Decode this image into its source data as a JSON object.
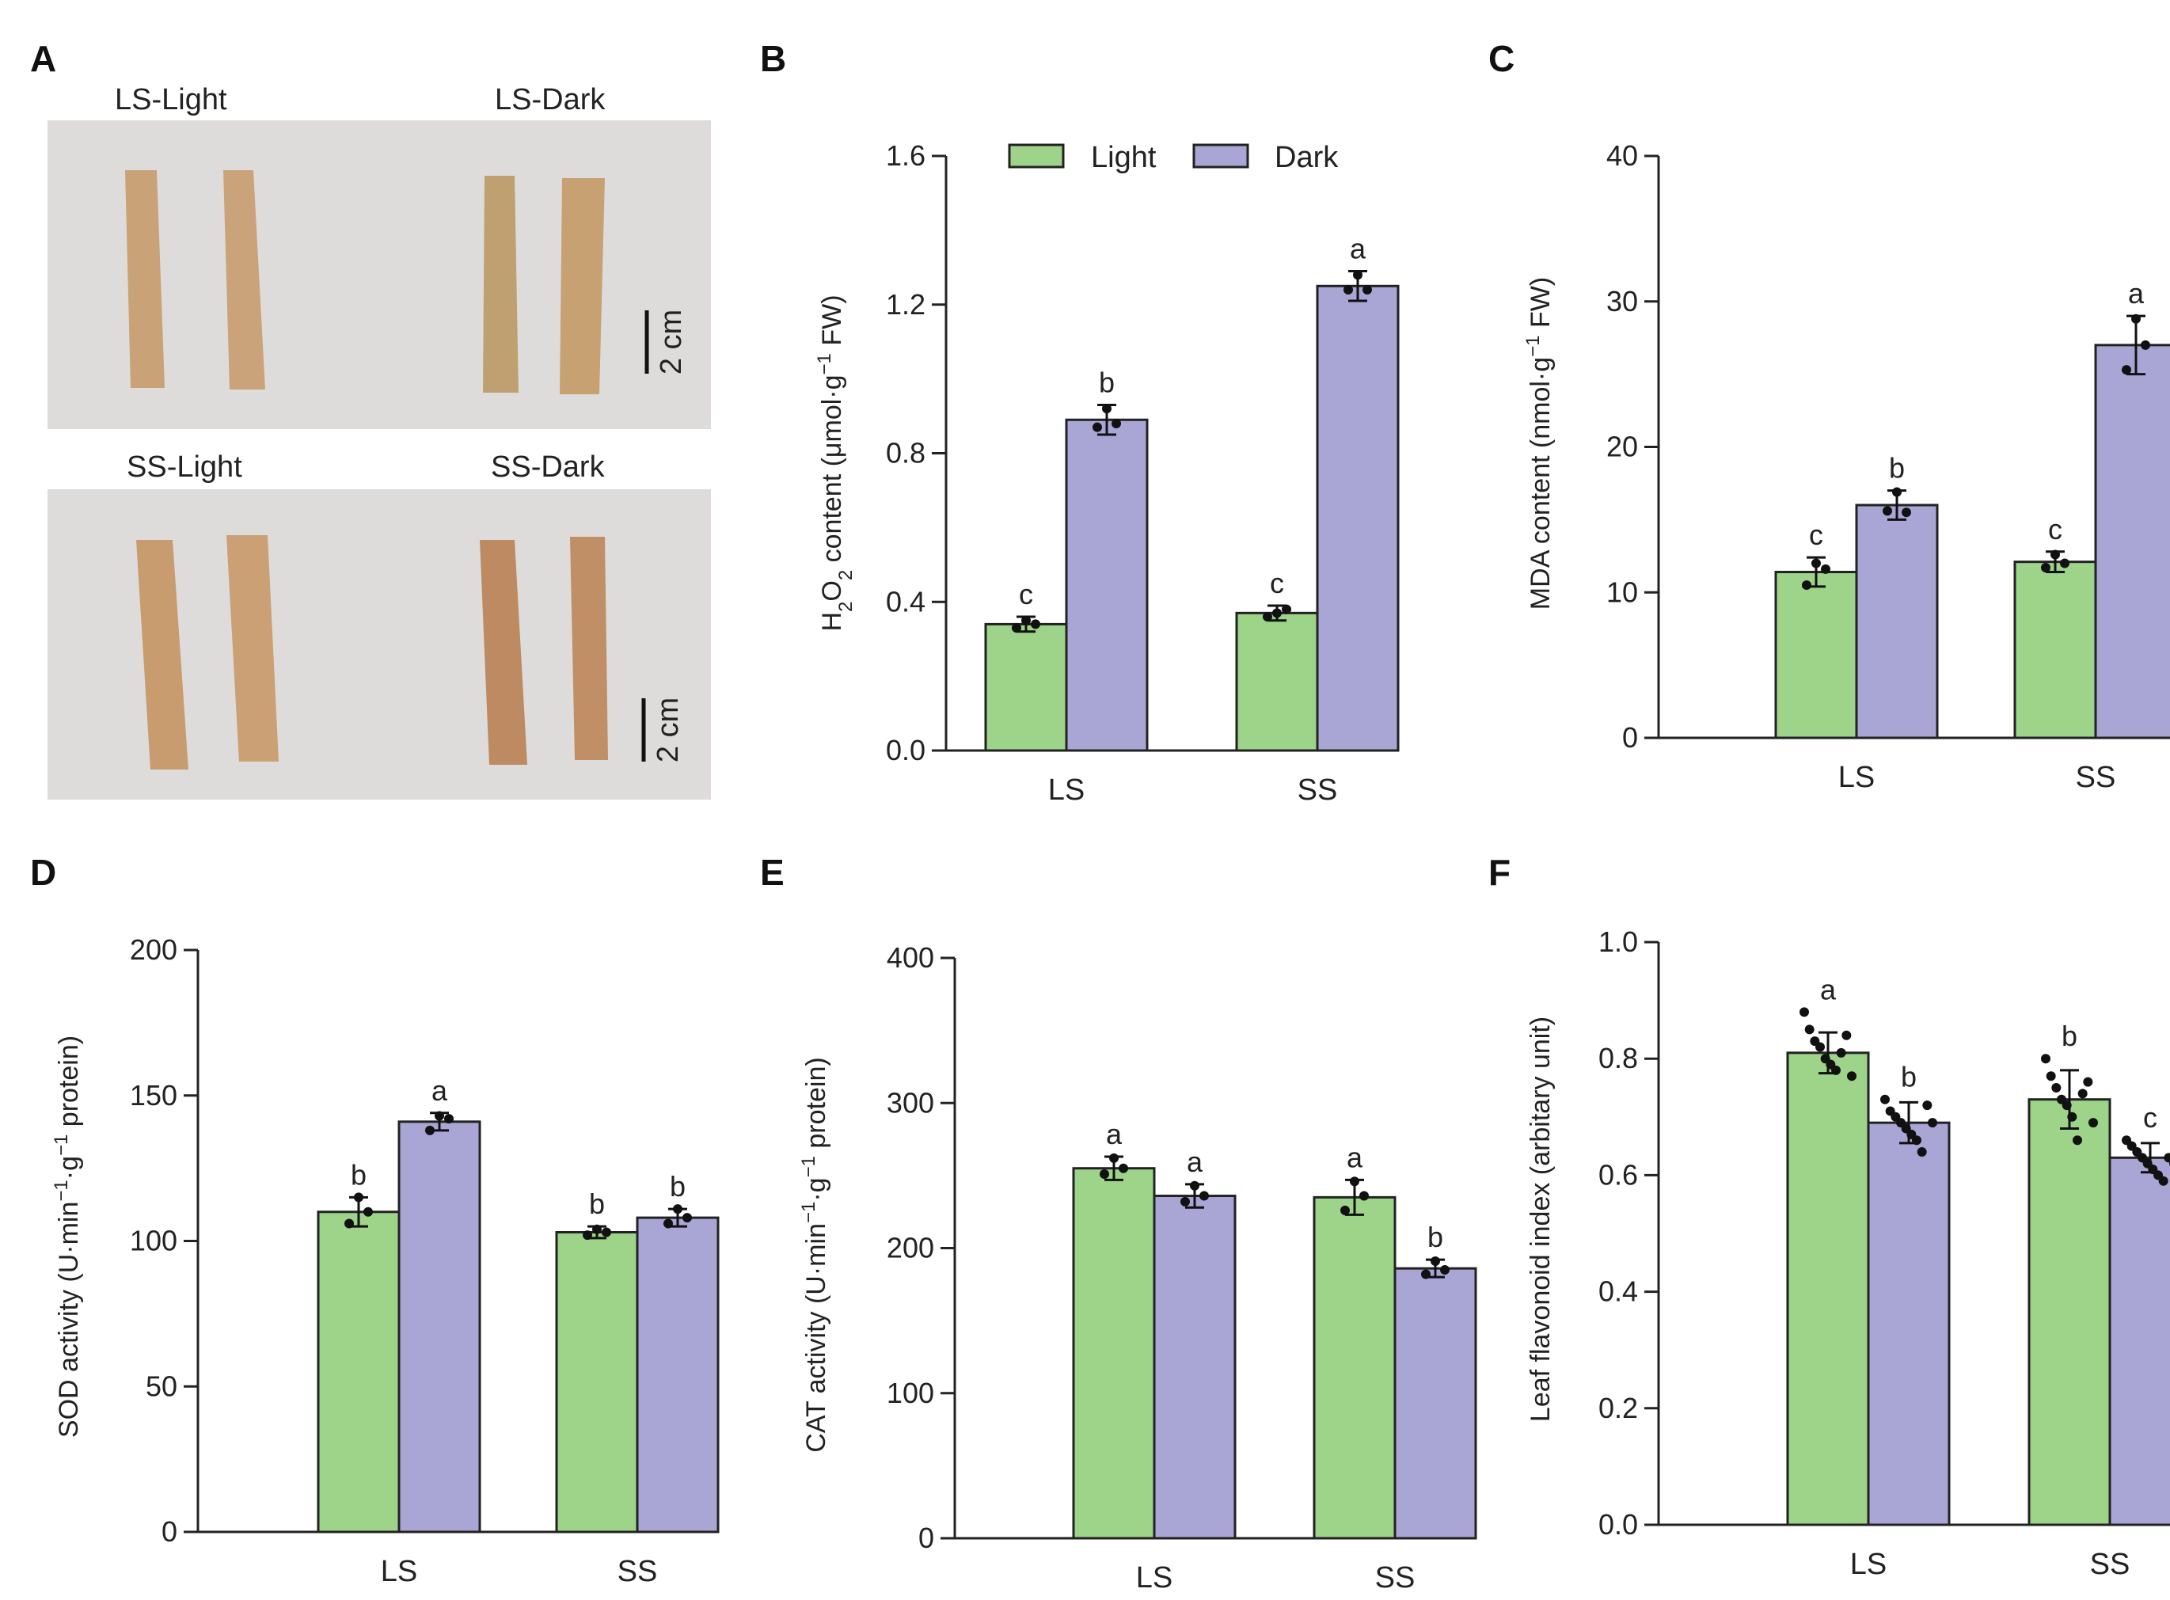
{
  "figure": {
    "panel_A": {
      "letter": "A",
      "top_labels": [
        "LS-Light",
        "LS-Dark"
      ],
      "bottom_labels": [
        "SS-Light",
        "SS-Dark"
      ],
      "scale_bar_label": "2 cm"
    },
    "legend": {
      "light_label": "Light",
      "dark_label": "Dark"
    },
    "colors": {
      "light": "#9dd48a",
      "dark": "#a9a6d6",
      "photo_bg": "#dedcda",
      "leaf": "#c9a278"
    }
  },
  "chart_data": [
    {
      "id": "B",
      "letter": "B",
      "type": "bar",
      "categories": [
        "LS",
        "SS"
      ],
      "series": [
        {
          "name": "Light",
          "values": [
            0.34,
            0.37
          ],
          "errors": [
            0.02,
            0.02
          ],
          "letters": [
            "c",
            "c"
          ],
          "points": [
            [
              0.33,
              0.35,
              0.34
            ],
            [
              0.36,
              0.37,
              0.38
            ]
          ]
        },
        {
          "name": "Dark",
          "values": [
            0.89,
            1.25
          ],
          "errors": [
            0.04,
            0.04
          ],
          "letters": [
            "b",
            "a"
          ],
          "points": [
            [
              0.87,
              0.92,
              0.88
            ],
            [
              1.24,
              1.28,
              1.24
            ]
          ]
        }
      ],
      "ylabel_main": "H",
      "ylabel_sub1": "2",
      "ylabel_mid": "O",
      "ylabel_sub2": "2",
      "ylabel_rest": " content (μmol·g",
      "ylabel_sup": "−1",
      "ylabel_end": " FW)",
      "ylim": [
        0,
        1.6
      ],
      "yticks": [
        0.0,
        0.4,
        0.8,
        1.2,
        1.6
      ],
      "ytick_labels": [
        "0.0",
        "0.4",
        "0.8",
        "1.2",
        "1.6"
      ]
    },
    {
      "id": "C",
      "letter": "C",
      "type": "bar",
      "categories": [
        "LS",
        "SS"
      ],
      "series": [
        {
          "name": "Light",
          "values": [
            11.4,
            12.1
          ],
          "errors": [
            1.0,
            0.7
          ],
          "letters": [
            "c",
            "c"
          ],
          "points": [
            [
              10.5,
              12.0,
              11.6
            ],
            [
              11.7,
              12.6,
              12.0
            ]
          ]
        },
        {
          "name": "Dark",
          "values": [
            16.0,
            27.0
          ],
          "errors": [
            1.0,
            2.0
          ],
          "letters": [
            "b",
            "a"
          ],
          "points": [
            [
              15.6,
              16.9,
              15.5
            ],
            [
              25.3,
              28.8,
              27.0
            ]
          ]
        }
      ],
      "ylabel_main": "MDA content (nmol·g",
      "ylabel_sup": "−1",
      "ylabel_end": " FW)",
      "ylim": [
        0,
        40
      ],
      "yticks": [
        0,
        10,
        20,
        30,
        40
      ],
      "ytick_labels": [
        "0",
        "10",
        "20",
        "30",
        "40"
      ]
    },
    {
      "id": "D",
      "letter": "D",
      "type": "bar",
      "categories": [
        "LS",
        "SS"
      ],
      "series": [
        {
          "name": "Light",
          "values": [
            110,
            103
          ],
          "errors": [
            5,
            2
          ],
          "letters": [
            "b",
            "b"
          ],
          "points": [
            [
              106,
              115,
              110
            ],
            [
              102,
              104,
              103
            ]
          ]
        },
        {
          "name": "Dark",
          "values": [
            141,
            108
          ],
          "errors": [
            3,
            3
          ],
          "letters": [
            "a",
            "b"
          ],
          "points": [
            [
              138,
              143,
              142
            ],
            [
              106,
              111,
              108
            ]
          ]
        }
      ],
      "ylabel_main": "SOD activity (U·min",
      "ylabel_sup": "−1",
      "ylabel_mid": "·g",
      "ylabel_sup2": "−1",
      "ylabel_end": " protein)",
      "ylim": [
        0,
        200
      ],
      "yticks": [
        0,
        50,
        100,
        150,
        200
      ],
      "ytick_labels": [
        "0",
        "50",
        "100",
        "150",
        "200"
      ]
    },
    {
      "id": "E",
      "letter": "E",
      "type": "bar",
      "categories": [
        "LS",
        "SS"
      ],
      "series": [
        {
          "name": "Light",
          "values": [
            255,
            235
          ],
          "errors": [
            8,
            12
          ],
          "letters": [
            "a",
            "a"
          ],
          "points": [
            [
              251,
              262,
              255
            ],
            [
              226,
              246,
              236
            ]
          ]
        },
        {
          "name": "Dark",
          "values": [
            236,
            186
          ],
          "errors": [
            8,
            6
          ],
          "letters": [
            "a",
            "b"
          ],
          "points": [
            [
              232,
              243,
              236
            ],
            [
              182,
              191,
              185
            ]
          ]
        }
      ],
      "ylabel_main": "CAT activity (U·min",
      "ylabel_sup": "−1",
      "ylabel_mid": "·g",
      "ylabel_sup2": "−1",
      "ylabel_end": " protein)",
      "ylim": [
        0,
        400
      ],
      "yticks": [
        0,
        100,
        200,
        300,
        400
      ],
      "ytick_labels": [
        "0",
        "100",
        "200",
        "300",
        "400"
      ]
    },
    {
      "id": "F",
      "letter": "F",
      "type": "bar",
      "categories": [
        "LS",
        "SS"
      ],
      "series": [
        {
          "name": "Light",
          "values": [
            0.81,
            0.73
          ],
          "errors": [
            0.035,
            0.05
          ],
          "letters": [
            "a",
            "b"
          ],
          "points": [
            [
              0.88,
              0.85,
              0.83,
              0.82,
              0.8,
              0.79,
              0.78,
              0.81,
              0.84,
              0.77
            ],
            [
              0.8,
              0.77,
              0.75,
              0.73,
              0.72,
              0.7,
              0.66,
              0.74,
              0.76,
              0.69
            ]
          ]
        },
        {
          "name": "Dark",
          "values": [
            0.69,
            0.63
          ],
          "errors": [
            0.035,
            0.025
          ],
          "letters": [
            "b",
            "c"
          ],
          "points": [
            [
              0.73,
              0.71,
              0.7,
              0.69,
              0.68,
              0.67,
              0.66,
              0.64,
              0.72,
              0.69
            ],
            [
              0.66,
              0.65,
              0.64,
              0.63,
              0.62,
              0.61,
              0.6,
              0.59,
              0.63,
              0.62
            ]
          ]
        }
      ],
      "ylabel_main": "Leaf flavonoid index (arbitary unit)",
      "ylim": [
        0,
        1.0
      ],
      "yticks": [
        0.0,
        0.2,
        0.4,
        0.6,
        0.8,
        1.0
      ],
      "ytick_labels": [
        "0.0",
        "0.2",
        "0.4",
        "0.6",
        "0.8",
        "1.0"
      ]
    }
  ]
}
